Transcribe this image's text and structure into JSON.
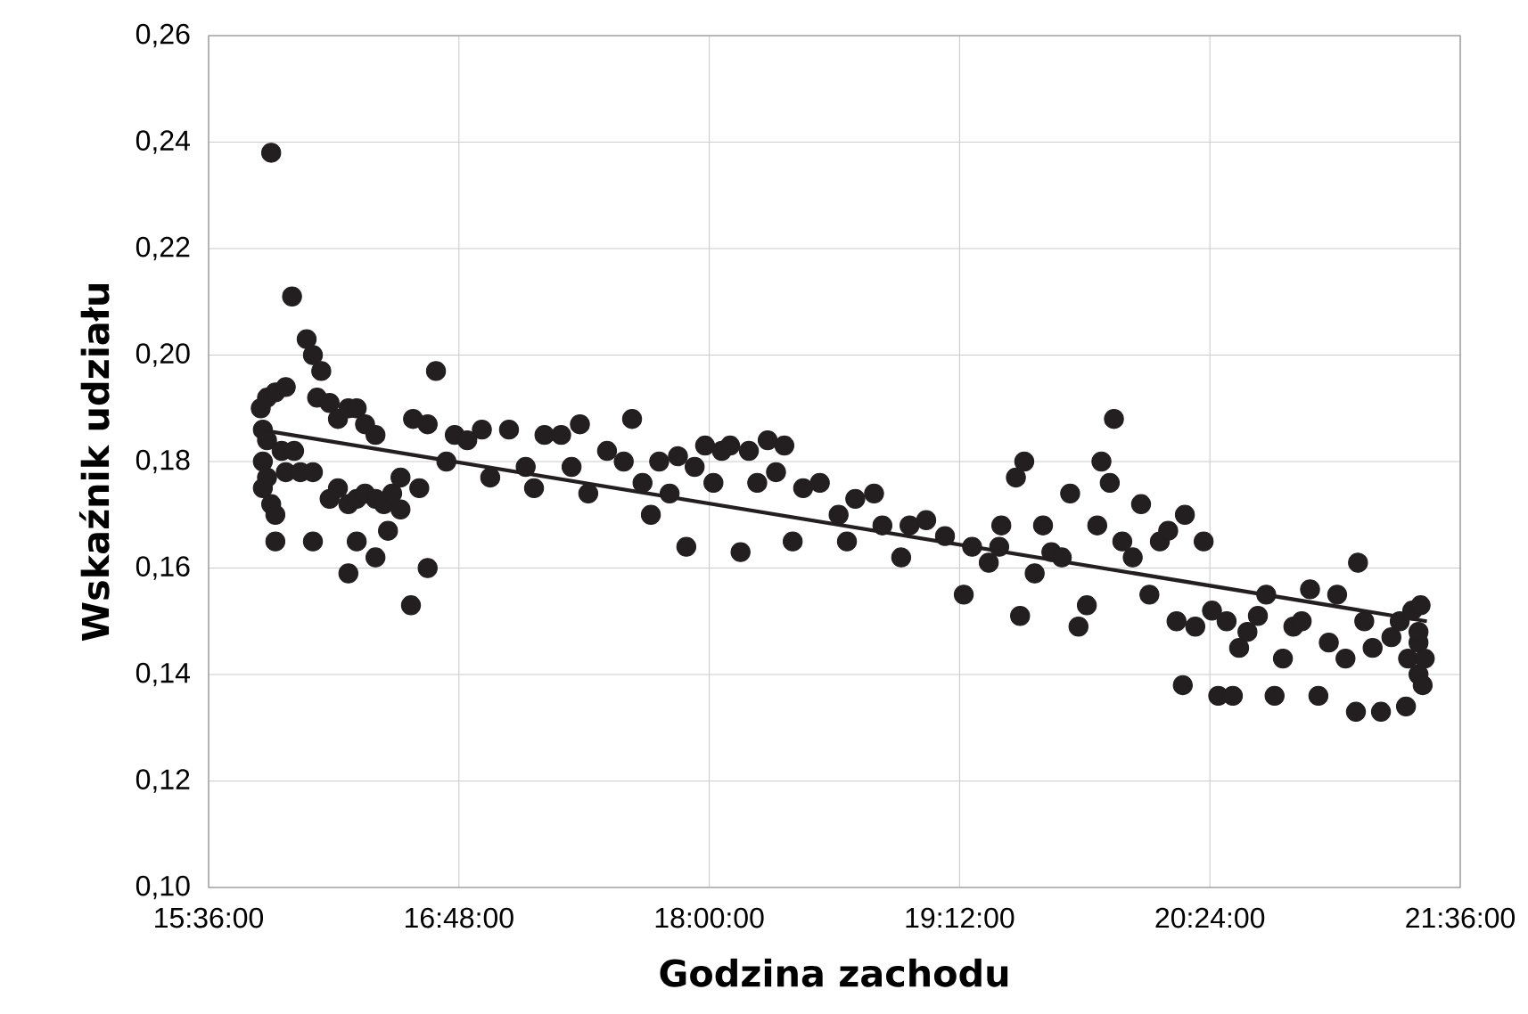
{
  "chart_data": {
    "type": "scatter",
    "xlabel": "Godzina zachodu",
    "ylabel": "Wskaźnik udziału",
    "xlim": [
      15.6,
      21.6
    ],
    "ylim": [
      0.1,
      0.26
    ],
    "xticks": [
      {
        "value": 15.6,
        "label": "15:36:00"
      },
      {
        "value": 16.8,
        "label": "16:48:00"
      },
      {
        "value": 18.0,
        "label": "18:00:00"
      },
      {
        "value": 19.2,
        "label": "19:12:00"
      },
      {
        "value": 20.4,
        "label": "20:24:00"
      },
      {
        "value": 21.6,
        "label": "21:36:00"
      }
    ],
    "yticks": [
      {
        "value": 0.1,
        "label": "0,10"
      },
      {
        "value": 0.12,
        "label": "0,12"
      },
      {
        "value": 0.14,
        "label": "0,14"
      },
      {
        "value": 0.16,
        "label": "0,16"
      },
      {
        "value": 0.18,
        "label": "0,18"
      },
      {
        "value": 0.2,
        "label": "0,20"
      },
      {
        "value": 0.22,
        "label": "0,22"
      },
      {
        "value": 0.24,
        "label": "0,24"
      },
      {
        "value": 0.26,
        "label": "0,26"
      }
    ],
    "grid": true,
    "series": [
      {
        "color": "#231f20",
        "marker": "circle",
        "x": [
          15.9,
          16.0,
          16.07,
          16.1,
          16.14,
          15.85,
          15.88,
          15.92,
          15.97,
          15.86,
          15.88,
          15.86,
          15.88,
          15.9,
          15.86,
          15.92,
          15.92,
          15.95,
          15.97,
          16.01,
          16.04,
          16.1,
          16.1,
          16.12,
          16.18,
          16.22,
          16.27,
          16.31,
          16.35,
          16.4,
          16.18,
          16.22,
          16.27,
          16.31,
          16.35,
          16.4,
          16.44,
          16.48,
          16.52,
          16.27,
          16.31,
          16.4,
          16.46,
          16.52,
          16.57,
          16.61,
          16.65,
          16.69,
          16.58,
          16.65,
          16.74,
          16.78,
          16.84,
          16.91,
          16.95,
          17.04,
          17.12,
          17.16,
          17.21,
          17.29,
          17.34,
          17.38,
          17.42,
          17.51,
          17.59,
          17.63,
          17.68,
          17.72,
          17.76,
          17.81,
          17.85,
          17.89,
          17.93,
          17.98,
          18.02,
          18.06,
          18.1,
          18.15,
          18.19,
          18.23,
          18.28,
          18.32,
          18.36,
          18.4,
          18.45,
          18.53,
          18.62,
          18.66,
          18.7,
          18.79,
          18.83,
          18.92,
          18.96,
          19.04,
          19.13,
          19.22,
          19.26,
          19.34,
          19.39,
          19.4,
          19.47,
          19.49,
          19.51,
          19.56,
          19.6,
          19.64,
          19.69,
          19.73,
          19.77,
          19.81,
          19.86,
          19.88,
          19.92,
          19.94,
          19.98,
          20.03,
          20.07,
          20.11,
          20.16,
          20.2,
          20.24,
          20.27,
          20.28,
          20.33,
          20.37,
          20.41,
          20.44,
          20.48,
          20.51,
          20.54,
          20.58,
          20.63,
          20.67,
          20.71,
          20.75,
          20.8,
          20.84,
          20.88,
          20.92,
          20.97,
          21.01,
          21.05,
          21.1,
          21.11,
          21.14,
          21.18,
          21.22,
          21.27,
          21.31,
          21.34,
          21.35,
          21.37,
          21.4,
          21.4,
          21.41,
          21.42,
          21.43,
          21.4
        ],
        "values": [
          0.238,
          0.211,
          0.203,
          0.2,
          0.197,
          0.19,
          0.192,
          0.193,
          0.194,
          0.186,
          0.184,
          0.18,
          0.177,
          0.172,
          0.175,
          0.17,
          0.165,
          0.182,
          0.178,
          0.182,
          0.178,
          0.178,
          0.165,
          0.192,
          0.191,
          0.188,
          0.19,
          0.19,
          0.187,
          0.185,
          0.173,
          0.175,
          0.172,
          0.173,
          0.174,
          0.173,
          0.172,
          0.174,
          0.171,
          0.159,
          0.165,
          0.162,
          0.167,
          0.177,
          0.153,
          0.175,
          0.16,
          0.197,
          0.188,
          0.187,
          0.18,
          0.185,
          0.184,
          0.186,
          0.177,
          0.186,
          0.179,
          0.175,
          0.185,
          0.185,
          0.179,
          0.187,
          0.174,
          0.182,
          0.18,
          0.188,
          0.176,
          0.17,
          0.18,
          0.174,
          0.181,
          0.164,
          0.179,
          0.183,
          0.176,
          0.182,
          0.183,
          0.163,
          0.182,
          0.176,
          0.184,
          0.178,
          0.183,
          0.165,
          0.175,
          0.176,
          0.17,
          0.165,
          0.173,
          0.174,
          0.168,
          0.162,
          0.168,
          0.169,
          0.166,
          0.155,
          0.164,
          0.161,
          0.164,
          0.168,
          0.177,
          0.151,
          0.18,
          0.159,
          0.168,
          0.163,
          0.162,
          0.174,
          0.149,
          0.153,
          0.168,
          0.18,
          0.176,
          0.188,
          0.165,
          0.162,
          0.172,
          0.155,
          0.165,
          0.167,
          0.15,
          0.138,
          0.17,
          0.149,
          0.165,
          0.152,
          0.136,
          0.15,
          0.136,
          0.145,
          0.148,
          0.151,
          0.155,
          0.136,
          0.143,
          0.149,
          0.15,
          0.156,
          0.136,
          0.146,
          0.155,
          0.143,
          0.133,
          0.161,
          0.15,
          0.145,
          0.133,
          0.147,
          0.15,
          0.134,
          0.143,
          0.152,
          0.14,
          0.146,
          0.153,
          0.138,
          0.143,
          0.148
        ]
      },
      {
        "type": "line",
        "color": "#231f20",
        "line_style": "solid",
        "marker": "none",
        "x": [
          15.84,
          21.44
        ],
        "values": [
          0.186,
          0.15
        ]
      }
    ]
  }
}
